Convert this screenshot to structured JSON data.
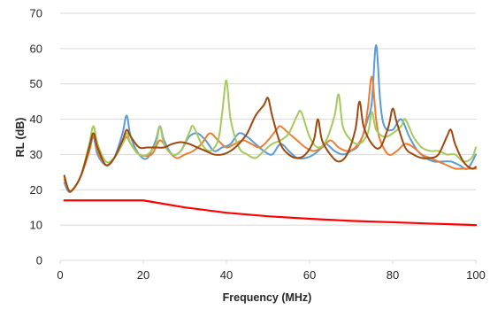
{
  "chart_data": {
    "type": "line",
    "title": "",
    "xlabel": "Frequency (MHz)",
    "ylabel": "RL (dB)",
    "xlim": [
      0,
      100
    ],
    "ylim": [
      0,
      70
    ],
    "x_ticks": [
      0,
      20,
      40,
      60,
      80,
      100
    ],
    "y_ticks": [
      0,
      10,
      20,
      30,
      40,
      50,
      60,
      70
    ],
    "grid": "horizontal",
    "legend": "none",
    "series": [
      {
        "color": "#ff0000",
        "points": [
          [
            1,
            17
          ],
          [
            20,
            17
          ],
          [
            30,
            15
          ],
          [
            40,
            13.5
          ],
          [
            50,
            12.5
          ],
          [
            60,
            11.8
          ],
          [
            70,
            11.2
          ],
          [
            80,
            10.8
          ],
          [
            90,
            10.4
          ],
          [
            100,
            10
          ]
        ]
      },
      {
        "color": "#5b9bd5",
        "points": [
          [
            1,
            22
          ],
          [
            2,
            19.5
          ],
          [
            3,
            20
          ],
          [
            5,
            24
          ],
          [
            7,
            31
          ],
          [
            8,
            35
          ],
          [
            9,
            30
          ],
          [
            11,
            27
          ],
          [
            13,
            29
          ],
          [
            15,
            36
          ],
          [
            16,
            41
          ],
          [
            17,
            35
          ],
          [
            19,
            30
          ],
          [
            21,
            29
          ],
          [
            23,
            34
          ],
          [
            24,
            38
          ],
          [
            25,
            34
          ],
          [
            27,
            30
          ],
          [
            29,
            31
          ],
          [
            31,
            35
          ],
          [
            33,
            36
          ],
          [
            35,
            34
          ],
          [
            37,
            31
          ],
          [
            39,
            32
          ],
          [
            41,
            33
          ],
          [
            43,
            36
          ],
          [
            45,
            35
          ],
          [
            47,
            33
          ],
          [
            49,
            31
          ],
          [
            51,
            30
          ],
          [
            53,
            33
          ],
          [
            55,
            31
          ],
          [
            57,
            29
          ],
          [
            59,
            29
          ],
          [
            61,
            30
          ],
          [
            63,
            32
          ],
          [
            64,
            33
          ],
          [
            66,
            31
          ],
          [
            68,
            30
          ],
          [
            70,
            31
          ],
          [
            72,
            33
          ],
          [
            74,
            40
          ],
          [
            75,
            45
          ],
          [
            76,
            61
          ],
          [
            77,
            45
          ],
          [
            78,
            38
          ],
          [
            80,
            37
          ],
          [
            82,
            40
          ],
          [
            84,
            35
          ],
          [
            86,
            31
          ],
          [
            88,
            29
          ],
          [
            90,
            28
          ],
          [
            92,
            28
          ],
          [
            94,
            28
          ],
          [
            96,
            27
          ],
          [
            98,
            26
          ],
          [
            100,
            30
          ]
        ]
      },
      {
        "color": "#ed7d31",
        "points": [
          [
            1,
            23
          ],
          [
            2,
            20
          ],
          [
            3,
            20
          ],
          [
            5,
            24
          ],
          [
            7,
            31
          ],
          [
            8,
            36
          ],
          [
            9,
            31
          ],
          [
            11,
            27
          ],
          [
            13,
            29
          ],
          [
            15,
            33
          ],
          [
            16,
            35
          ],
          [
            17,
            33
          ],
          [
            19,
            30
          ],
          [
            22,
            30
          ],
          [
            24,
            34
          ],
          [
            26,
            31
          ],
          [
            28,
            29
          ],
          [
            30,
            30
          ],
          [
            32,
            31
          ],
          [
            34,
            33
          ],
          [
            36,
            36
          ],
          [
            38,
            34
          ],
          [
            40,
            32
          ],
          [
            42,
            33
          ],
          [
            44,
            34
          ],
          [
            46,
            33
          ],
          [
            48,
            32
          ],
          [
            50,
            34
          ],
          [
            52,
            37
          ],
          [
            53,
            38
          ],
          [
            55,
            36
          ],
          [
            57,
            34
          ],
          [
            59,
            32
          ],
          [
            61,
            31
          ],
          [
            63,
            32
          ],
          [
            65,
            34
          ],
          [
            67,
            32
          ],
          [
            69,
            31
          ],
          [
            71,
            32
          ],
          [
            73,
            36
          ],
          [
            74,
            43
          ],
          [
            75,
            52
          ],
          [
            76,
            40
          ],
          [
            77,
            34
          ],
          [
            79,
            30
          ],
          [
            81,
            31
          ],
          [
            83,
            33
          ],
          [
            85,
            32
          ],
          [
            87,
            30
          ],
          [
            89,
            29
          ],
          [
            91,
            28
          ],
          [
            93,
            27
          ],
          [
            95,
            26
          ],
          [
            97,
            26
          ],
          [
            100,
            26
          ]
        ]
      },
      {
        "color": "#a5c95b",
        "points": [
          [
            1,
            24
          ],
          [
            2,
            20
          ],
          [
            3,
            20
          ],
          [
            5,
            24
          ],
          [
            7,
            33
          ],
          [
            8,
            38
          ],
          [
            9,
            33
          ],
          [
            11,
            28
          ],
          [
            13,
            29
          ],
          [
            15,
            33
          ],
          [
            16,
            36
          ],
          [
            17,
            33
          ],
          [
            19,
            30
          ],
          [
            21,
            30
          ],
          [
            23,
            33
          ],
          [
            24,
            38
          ],
          [
            25,
            33
          ],
          [
            27,
            30
          ],
          [
            29,
            31
          ],
          [
            31,
            36
          ],
          [
            32,
            38
          ],
          [
            34,
            33
          ],
          [
            36,
            31
          ],
          [
            38,
            34
          ],
          [
            39,
            42
          ],
          [
            40,
            51
          ],
          [
            41,
            40
          ],
          [
            43,
            32
          ],
          [
            45,
            30
          ],
          [
            47,
            29
          ],
          [
            49,
            31
          ],
          [
            51,
            33
          ],
          [
            53,
            34
          ],
          [
            55,
            36
          ],
          [
            57,
            41
          ],
          [
            58,
            42
          ],
          [
            60,
            35
          ],
          [
            62,
            32
          ],
          [
            64,
            34
          ],
          [
            66,
            41
          ],
          [
            67,
            47
          ],
          [
            68,
            38
          ],
          [
            70,
            34
          ],
          [
            72,
            33
          ],
          [
            74,
            36
          ],
          [
            75,
            42
          ],
          [
            76,
            37
          ],
          [
            78,
            35
          ],
          [
            80,
            36
          ],
          [
            82,
            38
          ],
          [
            83,
            40
          ],
          [
            85,
            35
          ],
          [
            87,
            32
          ],
          [
            89,
            31
          ],
          [
            91,
            31
          ],
          [
            93,
            30
          ],
          [
            95,
            30
          ],
          [
            97,
            28
          ],
          [
            99,
            29
          ],
          [
            100,
            32
          ]
        ]
      },
      {
        "color": "#9e480e",
        "points": [
          [
            1,
            24
          ],
          [
            2,
            20
          ],
          [
            3,
            20
          ],
          [
            5,
            24
          ],
          [
            7,
            32
          ],
          [
            8,
            36
          ],
          [
            9,
            32
          ],
          [
            11,
            27
          ],
          [
            13,
            29
          ],
          [
            15,
            34
          ],
          [
            16,
            37
          ],
          [
            17,
            35
          ],
          [
            19,
            32
          ],
          [
            21,
            32
          ],
          [
            23,
            32
          ],
          [
            25,
            32
          ],
          [
            27,
            33
          ],
          [
            29,
            33.5
          ],
          [
            31,
            33
          ],
          [
            33,
            32
          ],
          [
            35,
            31
          ],
          [
            37,
            30
          ],
          [
            39,
            30
          ],
          [
            41,
            31
          ],
          [
            43,
            33
          ],
          [
            45,
            36
          ],
          [
            47,
            41
          ],
          [
            49,
            44
          ],
          [
            50,
            46
          ],
          [
            51,
            41
          ],
          [
            53,
            33
          ],
          [
            55,
            30
          ],
          [
            57,
            29
          ],
          [
            59,
            30
          ],
          [
            61,
            34
          ],
          [
            62,
            40
          ],
          [
            63,
            34
          ],
          [
            65,
            30
          ],
          [
            67,
            28
          ],
          [
            69,
            30
          ],
          [
            71,
            37
          ],
          [
            72,
            45
          ],
          [
            73,
            38
          ],
          [
            75,
            33
          ],
          [
            77,
            32
          ],
          [
            79,
            38
          ],
          [
            80,
            43
          ],
          [
            81,
            39
          ],
          [
            83,
            32
          ],
          [
            85,
            30
          ],
          [
            87,
            29
          ],
          [
            89,
            29
          ],
          [
            91,
            30
          ],
          [
            93,
            35
          ],
          [
            94,
            37
          ],
          [
            95,
            33
          ],
          [
            97,
            28
          ],
          [
            99,
            26
          ],
          [
            100,
            26.5
          ]
        ]
      }
    ]
  }
}
